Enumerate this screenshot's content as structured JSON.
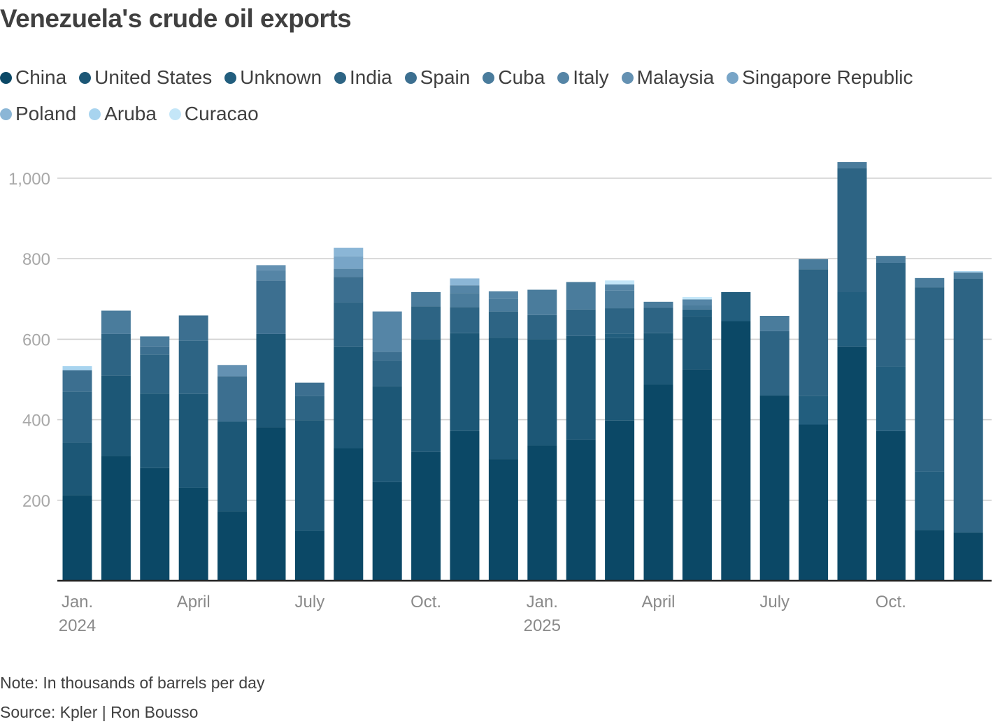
{
  "title": "Venezuela's crude oil exports",
  "note": "Note: In thousands of barrels per day",
  "source": "Source: Kpler | Ron Bousso",
  "colors": {
    "grid": "#cfcfcf",
    "axis": "#222222",
    "tick_text": "#a8a8a8",
    "date_text": "#8a8a8a"
  },
  "chart_data": {
    "type": "bar",
    "stacked": true,
    "title": "Venezuela's crude oil exports",
    "ylabel": "Thousands of barrels per day",
    "ylim": [
      0,
      1000
    ],
    "yticks": [
      200,
      400,
      600,
      800,
      1000
    ],
    "ytick_labels": [
      "200",
      "400",
      "600",
      "800",
      "1,000"
    ],
    "categories": [
      "Jan 2024",
      "Feb 2024",
      "Mar 2024",
      "Apr 2024",
      "May 2024",
      "Jun 2024",
      "Jul 2024",
      "Aug 2024",
      "Sep 2024",
      "Oct 2024",
      "Nov 2024",
      "Dec 2024",
      "Jan 2025",
      "Feb 2025",
      "Mar 2025",
      "Apr 2025",
      "May 2025",
      "Jun 2025",
      "Jul 2025",
      "Aug 2025",
      "Sep 2025",
      "Oct 2025",
      "Nov 2025",
      "Dec 2025"
    ],
    "x_tick_labels": [
      {
        "index": 0,
        "month": "Jan.",
        "year": "2024"
      },
      {
        "index": 3,
        "month": "April",
        "year": ""
      },
      {
        "index": 6,
        "month": "July",
        "year": ""
      },
      {
        "index": 9,
        "month": "Oct.",
        "year": ""
      },
      {
        "index": 12,
        "month": "Jan.",
        "year": "2025"
      },
      {
        "index": 15,
        "month": "April",
        "year": ""
      },
      {
        "index": 18,
        "month": "July",
        "year": ""
      },
      {
        "index": 21,
        "month": "Oct.",
        "year": ""
      }
    ],
    "legend_position": "top",
    "series": [
      {
        "name": "China",
        "color": "#0b4866",
        "values": [
          213,
          310,
          280,
          231,
          173,
          381,
          124,
          329,
          245,
          320,
          372,
          302,
          336,
          351,
          398,
          487,
          525,
          645,
          460,
          388,
          582,
          372,
          126,
          120
        ]
      },
      {
        "name": "United States",
        "color": "#1c5776",
        "values": [
          130,
          200,
          185,
          233,
          222,
          232,
          275,
          253,
          239,
          280,
          243,
          302,
          264,
          257,
          205,
          128,
          132,
          0,
          0,
          0,
          0,
          0,
          0,
          0
        ]
      },
      {
        "name": "Unknown",
        "color": "#225e7e",
        "values": [
          0,
          0,
          0,
          0,
          0,
          0,
          0,
          0,
          0,
          0,
          0,
          0,
          0,
          0,
          11,
          0,
          17,
          72,
          0,
          71,
          135,
          160,
          145,
          0
        ]
      },
      {
        "name": "India",
        "color": "#2d6484",
        "values": [
          127,
          103,
          97,
          132,
          0,
          0,
          60,
          110,
          63,
          82,
          65,
          65,
          60,
          66,
          63,
          63,
          0,
          0,
          160,
          315,
          308,
          258,
          458,
          630
        ]
      },
      {
        "name": "Spain",
        "color": "#3c6f90",
        "values": [
          53,
          0,
          20,
          63,
          113,
          133,
          33,
          63,
          22,
          0,
          0,
          0,
          0,
          0,
          0,
          0,
          0,
          0,
          0,
          0,
          0,
          0,
          0,
          0
        ]
      },
      {
        "name": "Cuba",
        "color": "#4a7c9c",
        "values": [
          0,
          58,
          25,
          0,
          0,
          0,
          0,
          0,
          0,
          35,
          35,
          32,
          63,
          68,
          44,
          15,
          10,
          0,
          38,
          25,
          15,
          17,
          23,
          16
        ]
      },
      {
        "name": "Italy",
        "color": "#5585a6",
        "values": [
          0,
          0,
          0,
          0,
          0,
          25,
          0,
          20,
          100,
          0,
          19,
          18,
          0,
          0,
          15,
          0,
          15,
          0,
          0,
          0,
          0,
          0,
          0,
          0
        ]
      },
      {
        "name": "Malaysia",
        "color": "#6491b2",
        "values": [
          0,
          0,
          0,
          0,
          28,
          13,
          0,
          0,
          0,
          0,
          0,
          0,
          0,
          0,
          0,
          0,
          0,
          0,
          0,
          0,
          0,
          0,
          0,
          0
        ]
      },
      {
        "name": "Singapore Republic",
        "color": "#78a5c7",
        "values": [
          0,
          0,
          0,
          0,
          0,
          0,
          0,
          31,
          0,
          0,
          0,
          0,
          0,
          0,
          0,
          0,
          0,
          0,
          0,
          0,
          0,
          0,
          0,
          0
        ]
      },
      {
        "name": "Poland",
        "color": "#8bb6d6",
        "values": [
          0,
          0,
          0,
          0,
          0,
          0,
          0,
          21,
          0,
          0,
          17,
          0,
          0,
          0,
          0,
          0,
          0,
          0,
          0,
          0,
          0,
          0,
          0,
          0
        ]
      },
      {
        "name": "Aruba",
        "color": "#a8d4ef",
        "values": [
          10,
          0,
          0,
          0,
          0,
          0,
          0,
          0,
          0,
          0,
          0,
          0,
          0,
          0,
          0,
          0,
          0,
          0,
          0,
          0,
          0,
          0,
          0,
          3
        ]
      },
      {
        "name": "Curacao",
        "color": "#c4e6f8",
        "values": [
          0,
          0,
          0,
          0,
          0,
          0,
          0,
          0,
          0,
          0,
          0,
          0,
          0,
          0,
          10,
          0,
          6,
          0,
          0,
          0,
          0,
          0,
          0,
          0
        ]
      }
    ]
  }
}
